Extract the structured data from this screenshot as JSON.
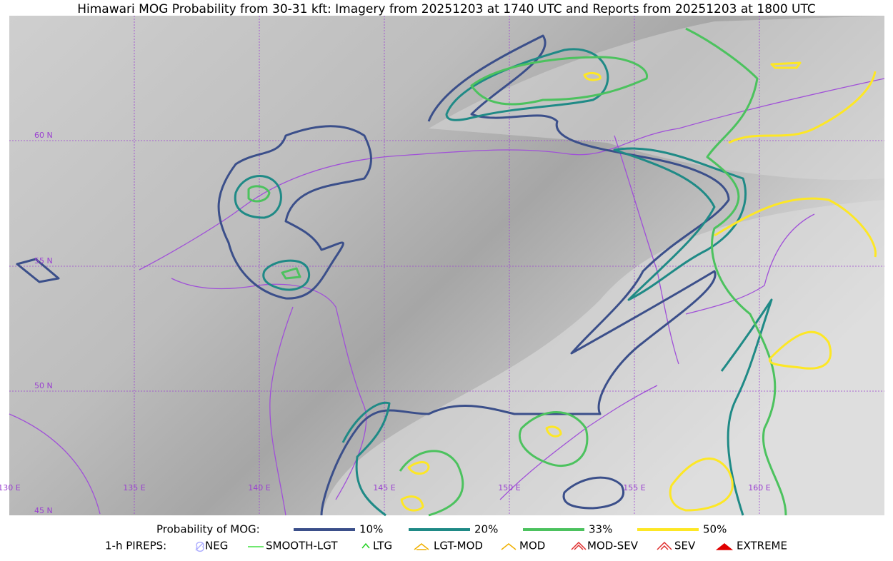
{
  "title": "Himawari MOG Probability from 30-31 kft: Imagery from 20251203 at 1740 UTC and Reports from 20251203 at 1800 UTC",
  "grid_labels": {
    "lat": [
      "60 N",
      "55 N",
      "50 N",
      "45 N"
    ],
    "lon": [
      "130 E",
      "135 E",
      "140 E",
      "145 E",
      "150 E",
      "155 E",
      "160 E"
    ]
  },
  "legend": {
    "probability": {
      "label": "Probability of MOG:",
      "items": [
        {
          "label": "10%",
          "color": "#3b4f8a"
        },
        {
          "label": "20%",
          "color": "#1f8a86"
        },
        {
          "label": "33%",
          "color": "#4cc25e"
        },
        {
          "label": "50%",
          "color": "#fde725"
        }
      ]
    },
    "pireps": {
      "label": "1-h PIREPS:",
      "items": [
        {
          "label": "NEG",
          "color": "#b0b0ff"
        },
        {
          "label": "SMOOTH-LGT",
          "color": "#40e040"
        },
        {
          "label": "LTG",
          "color": "#20d020"
        },
        {
          "label": "LGT-MOD",
          "color": "#f0b000"
        },
        {
          "label": "MOD",
          "color": "#f0b000"
        },
        {
          "label": "MOD-SEV",
          "color": "#e03030"
        },
        {
          "label": "SEV",
          "color": "#e03030"
        },
        {
          "label": "EXTREME",
          "color": "#e00000"
        }
      ]
    }
  }
}
